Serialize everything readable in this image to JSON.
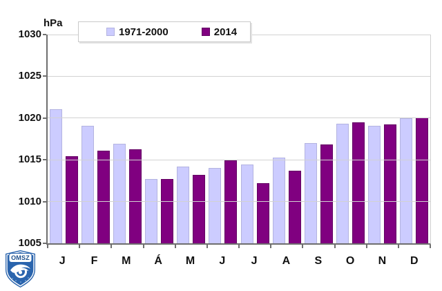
{
  "chart": {
    "unit_label": "hPa",
    "legend_items": [
      {
        "label": "1971-2000",
        "color": "#ccccff",
        "border": "#b3b3e0"
      },
      {
        "label": "2014",
        "color": "#800080",
        "border": "#620062"
      }
    ]
  },
  "chart_data": {
    "type": "bar",
    "categories": [
      "J",
      "F",
      "M",
      "Á",
      "M",
      "J",
      "J",
      "A",
      "S",
      "O",
      "N",
      "D"
    ],
    "series": [
      {
        "name": "1971-2000",
        "color": "#ccccff",
        "values": [
          1021.1,
          1019.1,
          1016.9,
          1012.7,
          1014.2,
          1014.0,
          1014.4,
          1015.3,
          1017.0,
          1019.3,
          1019.1,
          1020.0
        ]
      },
      {
        "name": "2014",
        "color": "#800080",
        "values": [
          1015.4,
          1016.1,
          1016.3,
          1012.7,
          1013.2,
          1014.9,
          1012.2,
          1013.7,
          1016.8,
          1019.5,
          1019.2,
          1020.1
        ]
      }
    ],
    "title": "",
    "xlabel": "",
    "ylabel": "hPa",
    "ylim": [
      1005,
      1030
    ],
    "yticks": [
      1005,
      1010,
      1015,
      1020,
      1025,
      1030
    ],
    "grid": true,
    "legend_position": "top"
  },
  "logo": {
    "text": "OMSZ",
    "shield_color": "#2a64ad",
    "accent_color": "#ffffff"
  },
  "colors": {
    "background": "#ffffff",
    "gridline": "#d2d2d2",
    "axis": "#6e6e6e",
    "text": "#111111"
  }
}
